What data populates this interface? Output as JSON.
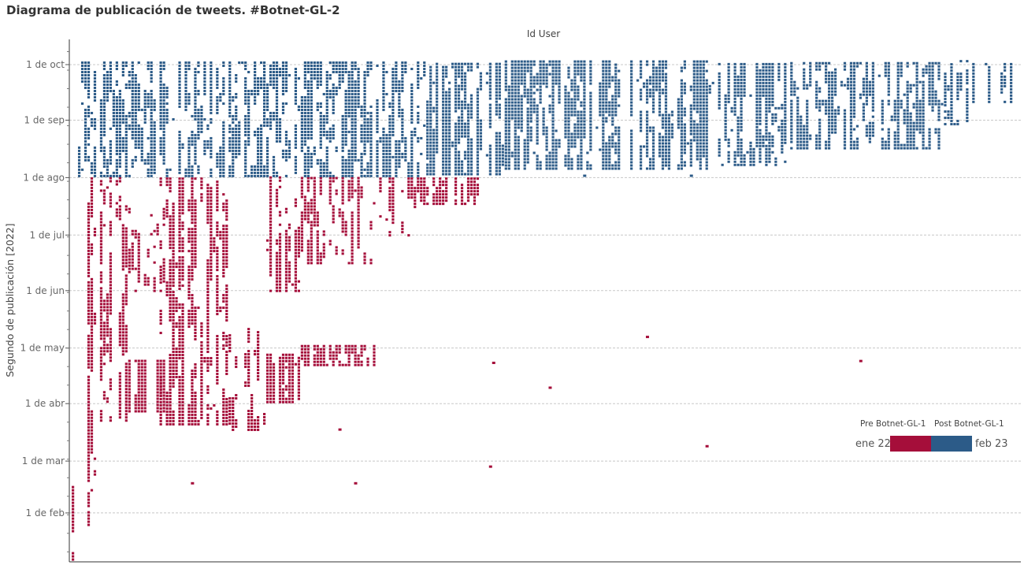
{
  "title": "Diagrama de publicación de tweets. #Botnet-GL-2",
  "chart_data": {
    "type": "scatter",
    "title": "Diagrama de publicación de tweets. #Botnet-GL-2",
    "xlabel": "Id User",
    "ylabel": "Segundo de publicación [2022]",
    "y_units": "day_of_year_2022",
    "ylim": [
      4.6,
      286.6
    ],
    "x_units": "user_index",
    "xlim": [
      0,
      301
    ],
    "grid": "horizontal dashed",
    "y_ticks": [
      {
        "label": "1 de oct",
        "day": 273
      },
      {
        "label": "1 de sep",
        "day": 243
      },
      {
        "label": "1 de ago",
        "day": 212
      },
      {
        "label": "1 de jul",
        "day": 181
      },
      {
        "label": "1 de jun",
        "day": 151
      },
      {
        "label": "1 de may",
        "day": 120
      },
      {
        "label": "1 de abr",
        "day": 90
      },
      {
        "label": "1 de mar",
        "day": 59
      },
      {
        "label": "1 de feb",
        "day": 31
      }
    ],
    "legend": {
      "placement": "bottom-right",
      "type": "color-gradient-two-step",
      "labels": [
        "Pre Botnet-GL-1",
        "Post Botnet-GL-1"
      ],
      "start_label": "ene 22",
      "end_label": "feb 23",
      "colors": [
        "#a50e3a",
        "#2c5b88"
      ]
    },
    "series": [
      {
        "name": "Pre Botnet-GL-1",
        "color": "#a50e3a",
        "blocks": [
          {
            "users": [
              0,
              3
            ],
            "days": [
              5,
              45
            ],
            "density": 0.75
          },
          {
            "users": [
              5,
              9
            ],
            "days": [
              22,
              212
            ],
            "density": 0.6
          },
          {
            "users": [
              9,
              18
            ],
            "days": [
              80,
              212
            ],
            "density": 0.5
          },
          {
            "users": [
              18,
              30
            ],
            "days": [
              85,
              113
            ],
            "density": 0.8
          },
          {
            "users": [
              18,
              30
            ],
            "days": [
              150,
              195
            ],
            "density": 0.35
          },
          {
            "users": [
              28,
              50
            ],
            "days": [
              78,
              212
            ],
            "density": 0.55
          },
          {
            "users": [
              50,
              62
            ],
            "days": [
              75,
              130
            ],
            "density": 0.4
          },
          {
            "users": [
              62,
              73
            ],
            "days": [
              90,
              116
            ],
            "density": 0.75
          },
          {
            "users": [
              62,
              73
            ],
            "days": [
              150,
              212
            ],
            "density": 0.5
          },
          {
            "users": [
              73,
              97
            ],
            "days": [
              110,
              121
            ],
            "density": 0.8
          },
          {
            "users": [
              73,
              97
            ],
            "days": [
              165,
              212
            ],
            "density": 0.45
          },
          {
            "users": [
              97,
              110
            ],
            "days": [
              180,
              212
            ],
            "density": 0.4
          },
          {
            "users": [
              110,
              130
            ],
            "days": [
              197,
              212
            ],
            "density": 0.55
          }
        ],
        "outliers": [
          [
            134,
            112
          ],
          [
            152,
            98.6
          ],
          [
            183,
            126
          ],
          [
            251,
            113
          ],
          [
            202,
            67
          ],
          [
            133,
            56
          ],
          [
            90,
            47
          ],
          [
            38,
            47
          ],
          [
            85,
            76
          ]
        ]
      },
      {
        "name": "Post Botnet-GL-1",
        "color": "#2c5b88",
        "blocks": [
          {
            "users": [
              2,
              113
            ],
            "days": [
              212,
              274
            ],
            "density": 0.55
          },
          {
            "users": [
              113,
              138
            ],
            "days": [
              213,
              274
            ],
            "density": 0.6
          },
          {
            "users": [
              138,
              203
            ],
            "days": [
              216,
              274
            ],
            "density": 0.62
          },
          {
            "users": [
              203,
              228
            ],
            "days": [
              218,
              274
            ],
            "density": 0.6
          },
          {
            "users": [
              228,
              278
            ],
            "days": [
              227,
              274
            ],
            "density": 0.55
          },
          {
            "users": [
              278,
              286
            ],
            "days": [
              240,
              274
            ],
            "density": 0.45
          },
          {
            "users": [
              286,
              301
            ],
            "days": [
              252,
              274
            ],
            "density": 0.55
          }
        ],
        "outliers": [
          [
            163,
            213
          ],
          [
            197,
            213
          ]
        ]
      }
    ]
  }
}
